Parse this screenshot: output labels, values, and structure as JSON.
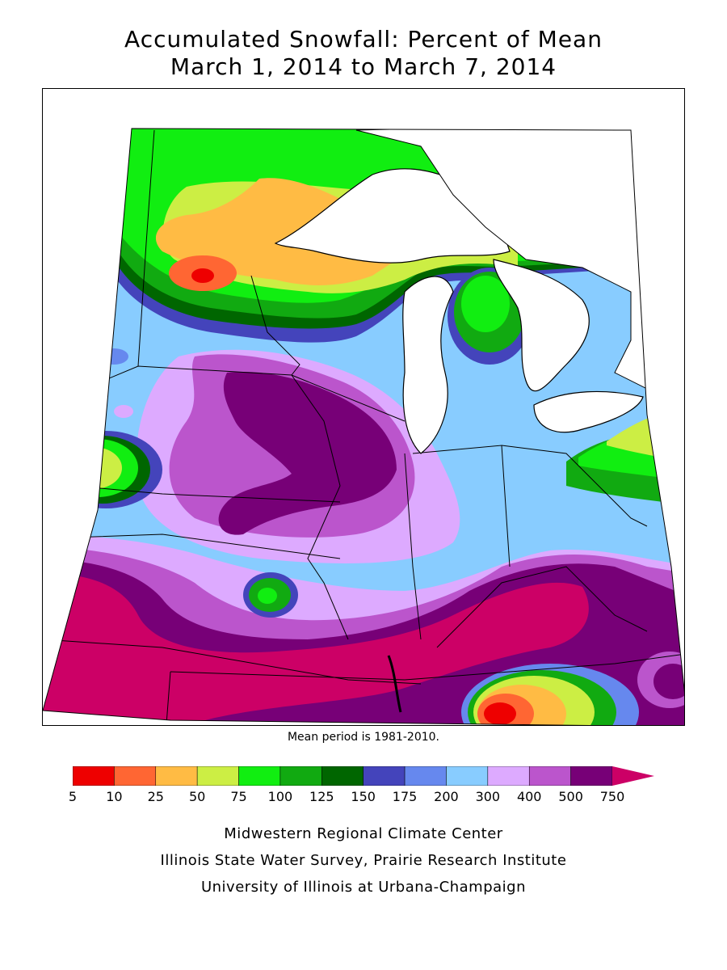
{
  "title": {
    "line1": "Accumulated Snowfall: Percent of Mean",
    "line2": "March 1, 2014 to March 7, 2014"
  },
  "mean_period": "Mean period is 1981-2010.",
  "legend": {
    "labels": [
      "5",
      "10",
      "25",
      "50",
      "75",
      "100",
      "125",
      "150",
      "175",
      "200",
      "300",
      "400",
      "500",
      "750"
    ],
    "colors": [
      "#ee0000",
      "#ff6633",
      "#ffbb44",
      "#ccee44",
      "#11ee11",
      "#11aa11",
      "#006600",
      "#4444bb",
      "#6688ee",
      "#88ccff",
      "#ddaaff",
      "#bb55cc",
      "#770077",
      "#cc0066"
    ]
  },
  "credits": {
    "line1": "Midwestern Regional Climate Center",
    "line2": "Illinois State Water Survey, Prairie Research Institute",
    "line3": "University of Illinois at Urbana-Champaign"
  }
}
